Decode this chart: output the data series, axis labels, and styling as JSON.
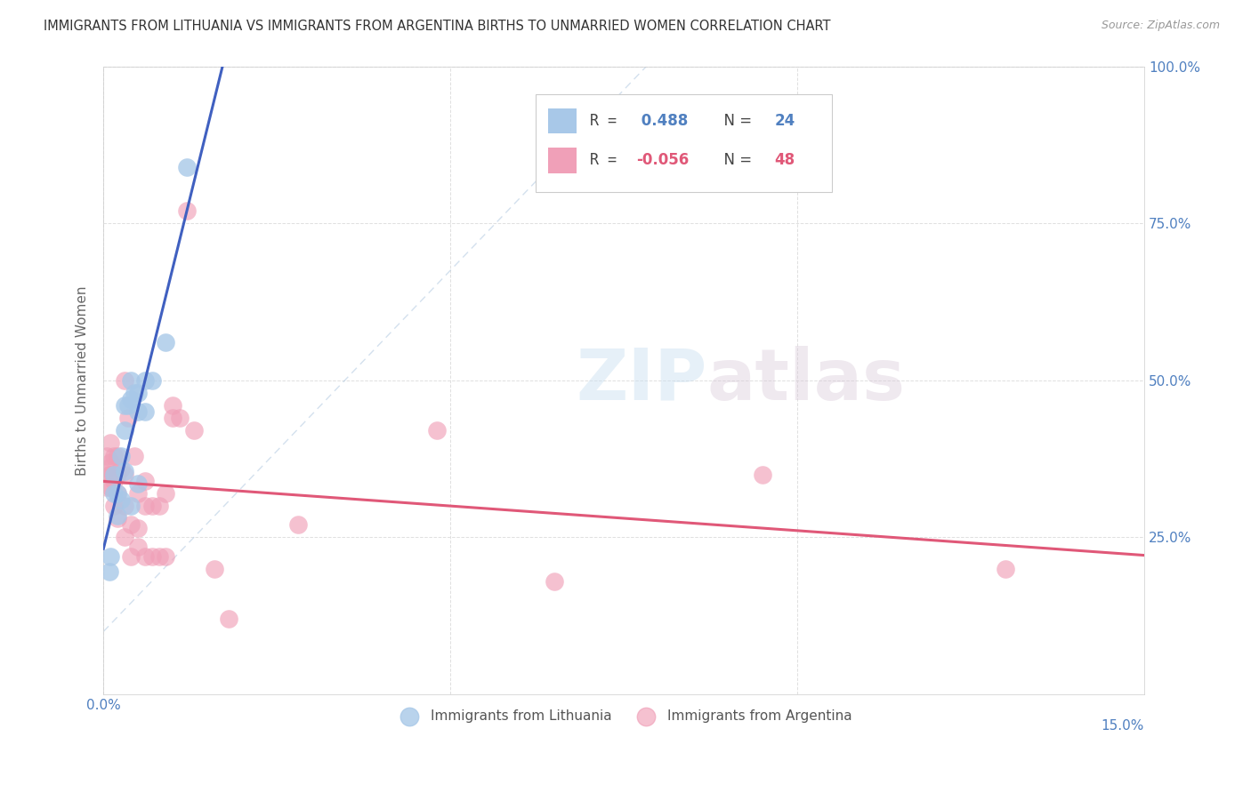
{
  "title": "IMMIGRANTS FROM LITHUANIA VS IMMIGRANTS FROM ARGENTINA BIRTHS TO UNMARRIED WOMEN CORRELATION CHART",
  "source": "Source: ZipAtlas.com",
  "ylabel_label": "Births to Unmarried Women",
  "xmin": 0.0,
  "xmax": 0.15,
  "ymin": 0.0,
  "ymax": 1.0,
  "watermark_zip": "ZIP",
  "watermark_atlas": "atlas",
  "color_blue": "#a8c8e8",
  "color_pink": "#f0a0b8",
  "color_blue_line": "#4060c0",
  "color_pink_line": "#e05878",
  "color_blue_dash": "#b0c8e0",
  "background_color": "#ffffff",
  "grid_color": "#e0e0e0",
  "lithuania_x": [
    0.0008,
    0.001,
    0.0015,
    0.0015,
    0.002,
    0.002,
    0.0025,
    0.0025,
    0.003,
    0.003,
    0.003,
    0.0035,
    0.004,
    0.004,
    0.004,
    0.0045,
    0.005,
    0.005,
    0.005,
    0.006,
    0.006,
    0.007,
    0.009,
    0.012
  ],
  "lithuania_y": [
    0.195,
    0.22,
    0.32,
    0.35,
    0.285,
    0.32,
    0.31,
    0.38,
    0.355,
    0.42,
    0.46,
    0.46,
    0.3,
    0.47,
    0.5,
    0.48,
    0.335,
    0.45,
    0.48,
    0.45,
    0.5,
    0.5,
    0.56,
    0.84
  ],
  "argentina_x": [
    0.0005,
    0.0005,
    0.0005,
    0.0008,
    0.001,
    0.001,
    0.001,
    0.001,
    0.0015,
    0.0015,
    0.0015,
    0.002,
    0.002,
    0.002,
    0.002,
    0.0025,
    0.003,
    0.003,
    0.003,
    0.003,
    0.0035,
    0.004,
    0.004,
    0.0045,
    0.005,
    0.005,
    0.005,
    0.006,
    0.006,
    0.006,
    0.007,
    0.007,
    0.008,
    0.008,
    0.009,
    0.009,
    0.01,
    0.01,
    0.011,
    0.012,
    0.013,
    0.016,
    0.018,
    0.028,
    0.048,
    0.065,
    0.095,
    0.13
  ],
  "argentina_y": [
    0.33,
    0.36,
    0.38,
    0.35,
    0.33,
    0.35,
    0.37,
    0.4,
    0.3,
    0.34,
    0.38,
    0.28,
    0.32,
    0.35,
    0.38,
    0.36,
    0.25,
    0.3,
    0.35,
    0.5,
    0.44,
    0.22,
    0.27,
    0.38,
    0.235,
    0.265,
    0.32,
    0.22,
    0.3,
    0.34,
    0.22,
    0.3,
    0.22,
    0.3,
    0.22,
    0.32,
    0.44,
    0.46,
    0.44,
    0.77,
    0.42,
    0.2,
    0.12,
    0.27,
    0.42,
    0.18,
    0.35,
    0.2
  ],
  "tick_color": "#5080c0",
  "label_color": "#666666",
  "title_color": "#333333",
  "source_color": "#999999"
}
